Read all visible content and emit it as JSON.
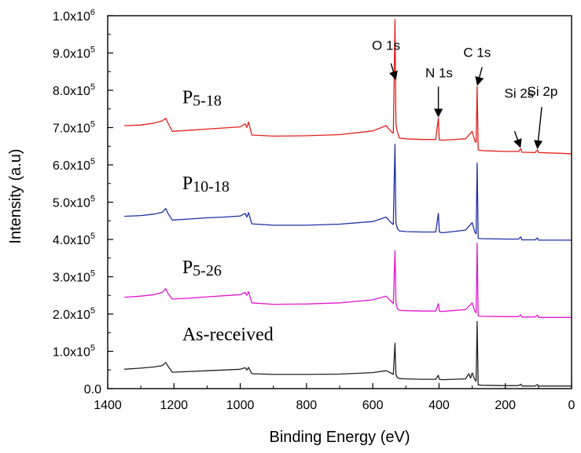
{
  "chart_data": {
    "type": "line",
    "xlabel": "Binding Energy (eV)",
    "ylabel": "Intensity (a.u)",
    "xlim": [
      1400,
      0
    ],
    "ylim": [
      0,
      1000000
    ],
    "x_ticks": [
      {
        "value": 1400,
        "label": "1400"
      },
      {
        "value": 1200,
        "label": "1200"
      },
      {
        "value": 1000,
        "label": "1000"
      },
      {
        "value": 800,
        "label": "800"
      },
      {
        "value": 600,
        "label": "600"
      },
      {
        "value": 400,
        "label": "400"
      },
      {
        "value": 200,
        "label": "200"
      },
      {
        "value": 0,
        "label": "0"
      }
    ],
    "y_ticks": [
      {
        "value": 0,
        "mantissa": "0.0",
        "exp": ""
      },
      {
        "value": 100000,
        "mantissa": "1.0x10",
        "exp": "5"
      },
      {
        "value": 200000,
        "mantissa": "2.0x10",
        "exp": "5"
      },
      {
        "value": 300000,
        "mantissa": "3.0x10",
        "exp": "5"
      },
      {
        "value": 400000,
        "mantissa": "4.0x10",
        "exp": "5"
      },
      {
        "value": 500000,
        "mantissa": "5.0x10",
        "exp": "5"
      },
      {
        "value": 600000,
        "mantissa": "6.0x10",
        "exp": "5"
      },
      {
        "value": 700000,
        "mantissa": "7.0x10",
        "exp": "5"
      },
      {
        "value": 800000,
        "mantissa": "8.0x10",
        "exp": "5"
      },
      {
        "value": 900000,
        "mantissa": "9.0x10",
        "exp": "5"
      },
      {
        "value": 1000000,
        "mantissa": "1.0x10",
        "exp": "6"
      }
    ],
    "series": [
      {
        "label_main": "P",
        "label_sub": "5-18",
        "color": "#e0201c",
        "points": [
          [
            1350,
            705000
          ],
          [
            1300,
            707000
          ],
          [
            1260,
            712000
          ],
          [
            1235,
            718000
          ],
          [
            1225,
            725000
          ],
          [
            1218,
            712000
          ],
          [
            1205,
            690000
          ],
          [
            1150,
            693000
          ],
          [
            1100,
            696000
          ],
          [
            1050,
            699000
          ],
          [
            1000,
            702000
          ],
          [
            985,
            710000
          ],
          [
            980,
            700000
          ],
          [
            975,
            715000
          ],
          [
            965,
            680000
          ],
          [
            900,
            677000
          ],
          [
            800,
            678000
          ],
          [
            700,
            681000
          ],
          [
            600,
            691000
          ],
          [
            560,
            705000
          ],
          [
            545,
            690000
          ],
          [
            538,
            685000
          ],
          [
            533,
            990000
          ],
          [
            530,
            710000
          ],
          [
            526,
            690000
          ],
          [
            520,
            672000
          ],
          [
            500,
            670000
          ],
          [
            450,
            668000
          ],
          [
            410,
            668000
          ],
          [
            402,
            725000
          ],
          [
            399,
            667000
          ],
          [
            390,
            666000
          ],
          [
            320,
            670000
          ],
          [
            300,
            690000
          ],
          [
            292,
            665000
          ],
          [
            288,
            660000
          ],
          [
            285,
            810000
          ],
          [
            282,
            640000
          ],
          [
            270,
            638000
          ],
          [
            200,
            636000
          ],
          [
            160,
            636000
          ],
          [
            153,
            643000
          ],
          [
            150,
            634000
          ],
          [
            110,
            633000
          ],
          [
            103,
            640000
          ],
          [
            100,
            633000
          ],
          [
            0,
            630000
          ]
        ]
      },
      {
        "label_main": "P",
        "label_sub": "10-18",
        "color": "#1f2fa6",
        "points": [
          [
            1350,
            462000
          ],
          [
            1300,
            464000
          ],
          [
            1260,
            468000
          ],
          [
            1235,
            473000
          ],
          [
            1225,
            483000
          ],
          [
            1218,
            470000
          ],
          [
            1205,
            452000
          ],
          [
            1150,
            455000
          ],
          [
            1100,
            458000
          ],
          [
            1050,
            460000
          ],
          [
            1000,
            463000
          ],
          [
            985,
            470000
          ],
          [
            980,
            460000
          ],
          [
            975,
            472000
          ],
          [
            965,
            442000
          ],
          [
            900,
            438000
          ],
          [
            800,
            438000
          ],
          [
            700,
            441000
          ],
          [
            600,
            448000
          ],
          [
            560,
            460000
          ],
          [
            545,
            445000
          ],
          [
            538,
            440000
          ],
          [
            533,
            655000
          ],
          [
            530,
            445000
          ],
          [
            526,
            430000
          ],
          [
            520,
            423000
          ],
          [
            500,
            421000
          ],
          [
            450,
            420000
          ],
          [
            410,
            420000
          ],
          [
            402,
            470000
          ],
          [
            399,
            420000
          ],
          [
            390,
            418000
          ],
          [
            320,
            425000
          ],
          [
            300,
            445000
          ],
          [
            292,
            420000
          ],
          [
            288,
            415000
          ],
          [
            285,
            605000
          ],
          [
            282,
            403000
          ],
          [
            270,
            402000
          ],
          [
            200,
            401000
          ],
          [
            160,
            401000
          ],
          [
            153,
            407000
          ],
          [
            150,
            399000
          ],
          [
            110,
            399000
          ],
          [
            103,
            404000
          ],
          [
            100,
            398000
          ],
          [
            0,
            398000
          ]
        ]
      },
      {
        "label_main": "P",
        "label_sub": "5-26",
        "color": "#e018d0",
        "points": [
          [
            1350,
            245000
          ],
          [
            1300,
            248000
          ],
          [
            1260,
            252000
          ],
          [
            1235,
            258000
          ],
          [
            1225,
            268000
          ],
          [
            1218,
            255000
          ],
          [
            1205,
            240000
          ],
          [
            1150,
            243000
          ],
          [
            1100,
            246000
          ],
          [
            1050,
            249000
          ],
          [
            1000,
            252000
          ],
          [
            985,
            258000
          ],
          [
            980,
            250000
          ],
          [
            975,
            260000
          ],
          [
            965,
            230000
          ],
          [
            900,
            226000
          ],
          [
            800,
            227000
          ],
          [
            700,
            230000
          ],
          [
            600,
            238000
          ],
          [
            560,
            248000
          ],
          [
            545,
            235000
          ],
          [
            538,
            228000
          ],
          [
            533,
            370000
          ],
          [
            530,
            230000
          ],
          [
            526,
            215000
          ],
          [
            520,
            210000
          ],
          [
            500,
            209000
          ],
          [
            450,
            208000
          ],
          [
            410,
            208000
          ],
          [
            402,
            228000
          ],
          [
            399,
            208000
          ],
          [
            390,
            207000
          ],
          [
            320,
            212000
          ],
          [
            300,
            230000
          ],
          [
            292,
            208000
          ],
          [
            288,
            203000
          ],
          [
            285,
            390000
          ],
          [
            282,
            195000
          ],
          [
            270,
            194000
          ],
          [
            200,
            193000
          ],
          [
            160,
            193000
          ],
          [
            153,
            198000
          ],
          [
            150,
            192000
          ],
          [
            110,
            192000
          ],
          [
            103,
            197000
          ],
          [
            100,
            191000
          ],
          [
            0,
            191000
          ]
        ]
      },
      {
        "label_main": "As-received",
        "label_sub": "",
        "color": "#222222",
        "points": [
          [
            1350,
            52000
          ],
          [
            1300,
            55000
          ],
          [
            1260,
            58000
          ],
          [
            1235,
            62000
          ],
          [
            1225,
            70000
          ],
          [
            1218,
            60000
          ],
          [
            1205,
            44000
          ],
          [
            1150,
            46000
          ],
          [
            1100,
            48000
          ],
          [
            1050,
            50000
          ],
          [
            1000,
            52000
          ],
          [
            985,
            56000
          ],
          [
            980,
            50000
          ],
          [
            975,
            57000
          ],
          [
            965,
            40000
          ],
          [
            900,
            38000
          ],
          [
            800,
            38000
          ],
          [
            700,
            39000
          ],
          [
            600,
            43000
          ],
          [
            560,
            48000
          ],
          [
            545,
            42000
          ],
          [
            538,
            38000
          ],
          [
            533,
            122000
          ],
          [
            530,
            38000
          ],
          [
            526,
            30000
          ],
          [
            520,
            27000
          ],
          [
            500,
            26000
          ],
          [
            450,
            25000
          ],
          [
            410,
            25000
          ],
          [
            402,
            36000
          ],
          [
            399,
            25000
          ],
          [
            390,
            24000
          ],
          [
            320,
            26000
          ],
          [
            310,
            40000
          ],
          [
            305,
            28000
          ],
          [
            300,
            42000
          ],
          [
            292,
            24000
          ],
          [
            288,
            20000
          ],
          [
            285,
            180000
          ],
          [
            282,
            10000
          ],
          [
            270,
            9000
          ],
          [
            200,
            8000
          ],
          [
            160,
            8000
          ],
          [
            153,
            12000
          ],
          [
            150,
            7000
          ],
          [
            110,
            7000
          ],
          [
            103,
            11000
          ],
          [
            100,
            7000
          ],
          [
            0,
            7000
          ]
        ]
      }
    ],
    "annotations": [
      {
        "text": "O 1s",
        "text_x": 560,
        "text_y": 908000,
        "arrow_from": [
          545,
          872000
        ],
        "arrow_to": [
          531,
          830000
        ]
      },
      {
        "text": "N 1s",
        "text_x": 400,
        "text_y": 835000,
        "arrow_from": [
          402,
          810000
        ],
        "arrow_to": [
          402,
          730000
        ]
      },
      {
        "text": "C 1s",
        "text_x": 285,
        "text_y": 890000,
        "arrow_from": [
          270,
          862000
        ],
        "arrow_to": [
          284,
          815000
        ]
      },
      {
        "text": "Si 2s",
        "text_x": 158,
        "text_y": 780000,
        "arrow_from": [
          172,
          690000
        ],
        "arrow_to": [
          155,
          648000
        ]
      },
      {
        "text": "Si 2p",
        "text_x": 88,
        "text_y": 785000,
        "arrow_from": [
          90,
          755000
        ],
        "arrow_to": [
          103,
          645000
        ]
      }
    ],
    "series_label_positions": [
      {
        "x": 1175,
        "y": 765000
      },
      {
        "x": 1175,
        "y": 535000
      },
      {
        "x": 1175,
        "y": 310000
      },
      {
        "x": 1175,
        "y": 130000
      }
    ],
    "grid": false,
    "legend": "none"
  }
}
